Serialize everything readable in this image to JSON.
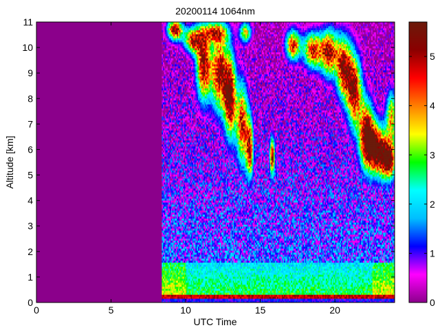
{
  "chart_data": {
    "type": "heatmap",
    "title": "20200114 1064nm",
    "xlabel": "UTC Time",
    "ylabel": "Altitude [km]",
    "xlim": [
      0,
      24
    ],
    "ylim": [
      0,
      11
    ],
    "xticks": [
      0,
      5,
      10,
      15,
      20
    ],
    "yticks": [
      0,
      1,
      2,
      3,
      4,
      5,
      6,
      7,
      8,
      9,
      10,
      11
    ],
    "colorbar": {
      "range": [
        0,
        5.7
      ],
      "ticks": [
        0,
        1,
        2,
        3,
        4,
        5
      ],
      "colors": [
        "#8b008b",
        "#ff00ff",
        "#0000ff",
        "#00bfff",
        "#00ffff",
        "#00ff00",
        "#ffff00",
        "#ff8000",
        "#ff0000",
        "#8b0000",
        "#6b1a0a"
      ]
    },
    "data_start_utc": 8.4,
    "data_end_utc": 24,
    "background_color": "#8b008b"
  }
}
